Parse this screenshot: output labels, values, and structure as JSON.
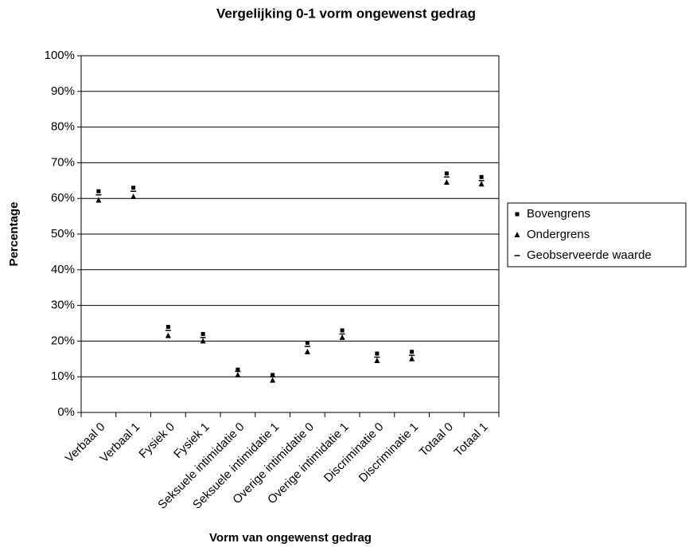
{
  "chart_data": {
    "type": "stock",
    "title": "Vergelijking 0-1 vorm ongewenst gedrag",
    "x_label": "Vorm van ongewenst gedrag",
    "y_label": "Percentage",
    "categories": [
      "Verbaal 0",
      "Verbaal 1",
      "Fysiek 0",
      "Fysiek 1",
      "Seksuele intimidatie 0",
      "Seksuele intimidatie 1",
      "Overige intimidatie 0",
      "Overige intimidatie 1",
      "Discriminatie 0",
      "Discriminatie 1",
      "Totaal 0",
      "Totaal 1"
    ],
    "series": [
      {
        "name": "Bovengrens",
        "color": "#000000",
        "marker": "square",
        "values": [
          62,
          63,
          24,
          22,
          12,
          10.5,
          19.5,
          23,
          16.5,
          17,
          67,
          66
        ]
      },
      {
        "name": "Ondergrens",
        "color": "#000000",
        "marker": "triangle",
        "values": [
          59.5,
          60.5,
          21.5,
          20,
          10.5,
          9,
          17,
          21,
          14.5,
          15,
          64.5,
          64
        ]
      },
      {
        "name": "Geobserveerde waarde",
        "color": "#000000",
        "marker": "dash",
        "values": [
          61,
          62,
          23,
          21,
          11.5,
          10,
          18.5,
          22,
          15.5,
          16,
          66,
          65
        ]
      }
    ],
    "ylim": [
      0,
      100
    ],
    "yticks": [
      {
        "value": 0,
        "label": "0%"
      },
      {
        "value": 10,
        "label": "10%"
      },
      {
        "value": 20,
        "label": "20%"
      },
      {
        "value": 30,
        "label": "30%"
      },
      {
        "value": 40,
        "label": "40%"
      },
      {
        "value": 50,
        "label": "50%"
      },
      {
        "value": 60,
        "label": "60%"
      },
      {
        "value": 70,
        "label": "70%"
      },
      {
        "value": 80,
        "label": "80%"
      },
      {
        "value": 90,
        "label": "90%"
      },
      {
        "value": 100,
        "label": "100%"
      }
    ],
    "grid": true,
    "legend": "right"
  }
}
